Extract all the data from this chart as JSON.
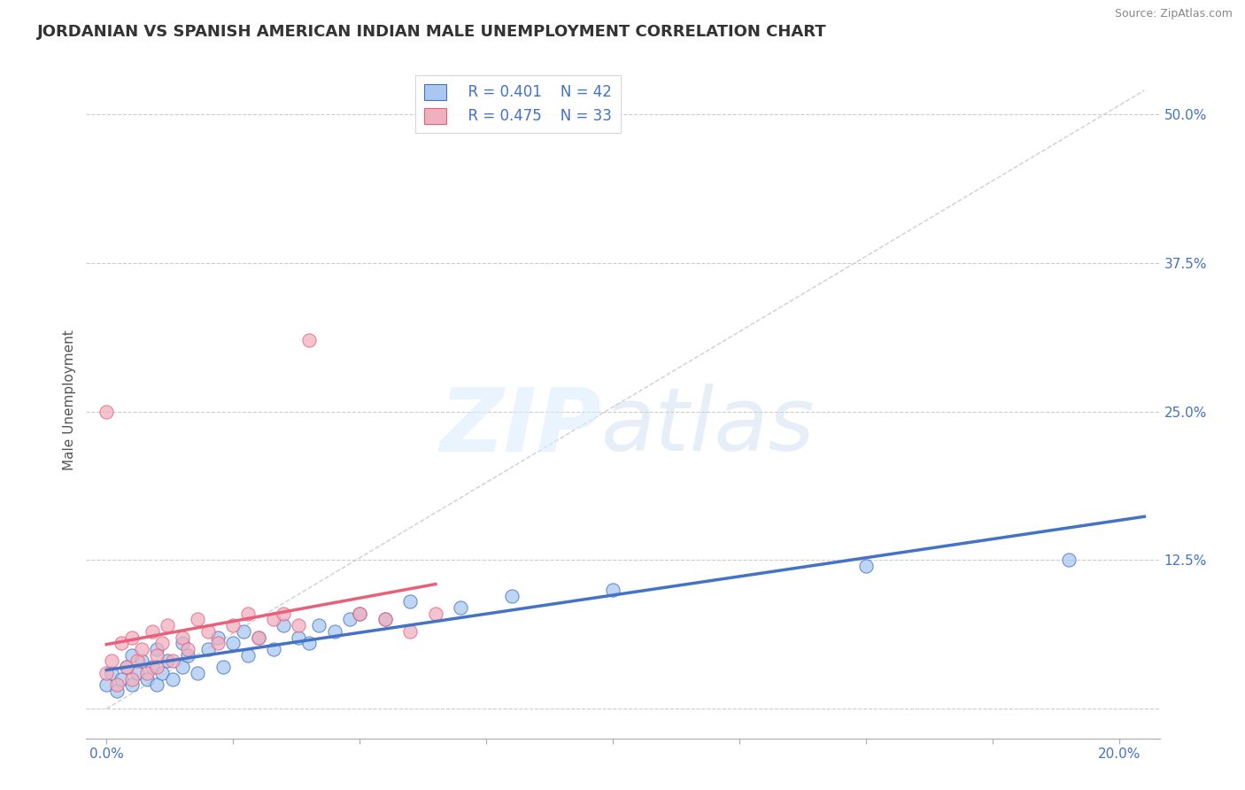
{
  "title": "JORDANIAN VS SPANISH AMERICAN INDIAN MALE UNEMPLOYMENT CORRELATION CHART",
  "source": "Source: ZipAtlas.com",
  "ylabel_text": "Male Unemployment",
  "x_ticks": [
    0.0,
    0.025,
    0.05,
    0.075,
    0.1,
    0.125,
    0.15,
    0.175,
    0.2
  ],
  "y_ticks": [
    0.0,
    0.125,
    0.25,
    0.375,
    0.5
  ],
  "xlim": [
    -0.004,
    0.208
  ],
  "ylim": [
    -0.025,
    0.545
  ],
  "legend_R1": "R = 0.401",
  "legend_N1": "N = 42",
  "legend_R2": "R = 0.475",
  "legend_N2": "N = 33",
  "color_jordan": "#a8c8f0",
  "color_spain": "#f0b0c0",
  "color_jordan_line": "#4472c4",
  "color_spain_line": "#e8607a",
  "color_diag": "#bbbbbb",
  "color_grid": "#cccccc",
  "color_axis_text": "#4472c4",
  "jordan_x": [
    0.0,
    0.001,
    0.002,
    0.003,
    0.004,
    0.005,
    0.005,
    0.006,
    0.007,
    0.008,
    0.009,
    0.01,
    0.01,
    0.011,
    0.012,
    0.013,
    0.015,
    0.015,
    0.016,
    0.018,
    0.02,
    0.022,
    0.023,
    0.025,
    0.027,
    0.028,
    0.03,
    0.033,
    0.035,
    0.038,
    0.04,
    0.042,
    0.045,
    0.048,
    0.05,
    0.055,
    0.06,
    0.07,
    0.08,
    0.1,
    0.15,
    0.19
  ],
  "jordan_y": [
    0.02,
    0.03,
    0.015,
    0.025,
    0.035,
    0.02,
    0.045,
    0.03,
    0.04,
    0.025,
    0.035,
    0.02,
    0.05,
    0.03,
    0.04,
    0.025,
    0.055,
    0.035,
    0.045,
    0.03,
    0.05,
    0.06,
    0.035,
    0.055,
    0.065,
    0.045,
    0.06,
    0.05,
    0.07,
    0.06,
    0.055,
    0.07,
    0.065,
    0.075,
    0.08,
    0.075,
    0.09,
    0.085,
    0.095,
    0.1,
    0.12,
    0.125
  ],
  "spain_x": [
    0.0,
    0.0,
    0.001,
    0.002,
    0.003,
    0.004,
    0.005,
    0.005,
    0.006,
    0.007,
    0.008,
    0.009,
    0.01,
    0.01,
    0.011,
    0.012,
    0.013,
    0.015,
    0.016,
    0.018,
    0.02,
    0.022,
    0.025,
    0.028,
    0.03,
    0.033,
    0.035,
    0.038,
    0.04,
    0.05,
    0.055,
    0.06,
    0.065
  ],
  "spain_y": [
    0.25,
    0.03,
    0.04,
    0.02,
    0.055,
    0.035,
    0.025,
    0.06,
    0.04,
    0.05,
    0.03,
    0.065,
    0.045,
    0.035,
    0.055,
    0.07,
    0.04,
    0.06,
    0.05,
    0.075,
    0.065,
    0.055,
    0.07,
    0.08,
    0.06,
    0.075,
    0.08,
    0.07,
    0.31,
    0.08,
    0.075,
    0.065,
    0.08
  ],
  "title_fontsize": 13,
  "source_fontsize": 9,
  "tick_fontsize": 11,
  "ylabel_fontsize": 11
}
